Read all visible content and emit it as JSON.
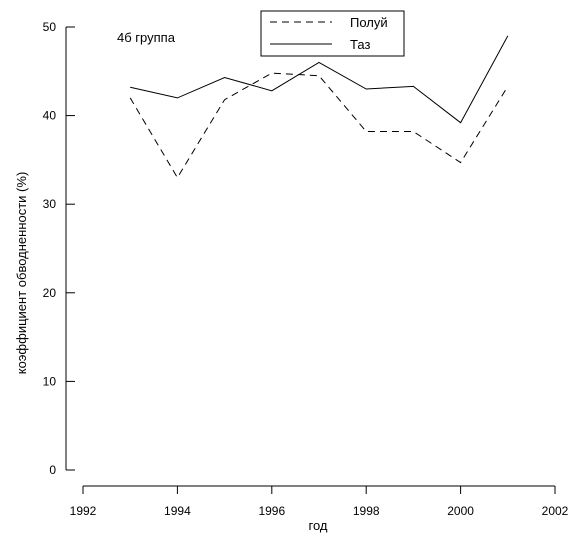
{
  "chart_data": {
    "type": "line",
    "title": "",
    "annotation": "4б группа",
    "xlabel": "год",
    "ylabel": "коэффициент обводненности (%)",
    "xlim": [
      1992,
      2002
    ],
    "ylim": [
      0,
      50
    ],
    "x_ticks": [
      1992,
      1994,
      1996,
      1998,
      2000,
      2002
    ],
    "y_ticks": [
      0,
      10,
      20,
      30,
      40,
      50
    ],
    "x_tick_labels": [
      "1992",
      "1994",
      "1996",
      "1998",
      "2000",
      "2002"
    ],
    "y_tick_labels": [
      "0",
      "10",
      "20",
      "30",
      "40",
      "50"
    ],
    "grid": false,
    "legend_position": "top-center",
    "x": [
      1993,
      1994,
      1995,
      1996,
      1997,
      1998,
      1999,
      2000,
      2001
    ],
    "series": [
      {
        "name": "Полуй",
        "style": "dashed",
        "color": "#000000",
        "values": [
          42.0,
          33.0,
          41.8,
          44.8,
          44.5,
          38.2,
          38.2,
          34.7,
          43.3
        ]
      },
      {
        "name": "Таз",
        "style": "solid",
        "color": "#000000",
        "values": [
          43.2,
          42.0,
          44.3,
          42.8,
          46.0,
          43.0,
          43.3,
          39.2,
          49.0
        ]
      }
    ]
  }
}
